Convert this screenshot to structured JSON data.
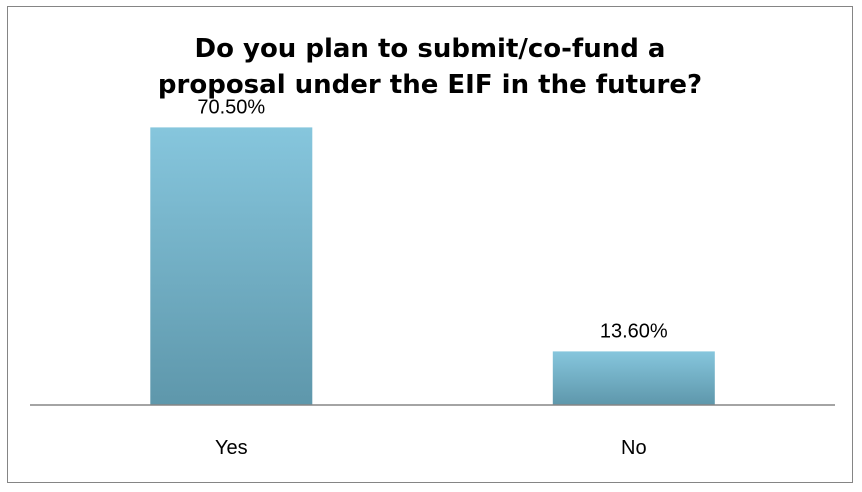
{
  "chart_data": {
    "type": "bar",
    "title_lines": [
      "Do you plan to submit/co-fund a",
      "proposal under the EIF in the future?"
    ],
    "categories": [
      "Yes",
      "No"
    ],
    "values": [
      70.5,
      13.6
    ],
    "data_labels": [
      "70.50%",
      "13.60%"
    ],
    "unit": "%",
    "ylim": [
      0,
      80
    ],
    "grid": false,
    "legend": "none",
    "colors": {
      "bar_top": "#86c6dd",
      "bar_bottom": "#5e97ab",
      "axis": "#858585",
      "border": "#858585"
    }
  }
}
